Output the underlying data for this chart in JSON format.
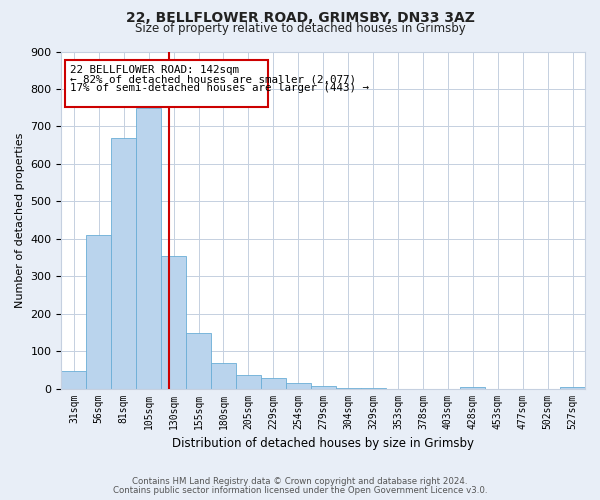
{
  "title1": "22, BELLFLOWER ROAD, GRIMSBY, DN33 3AZ",
  "title2": "Size of property relative to detached houses in Grimsby",
  "xlabel": "Distribution of detached houses by size in Grimsby",
  "ylabel": "Number of detached properties",
  "bar_labels": [
    "31sqm",
    "56sqm",
    "81sqm",
    "105sqm",
    "130sqm",
    "155sqm",
    "180sqm",
    "205sqm",
    "229sqm",
    "254sqm",
    "279sqm",
    "304sqm",
    "329sqm",
    "353sqm",
    "378sqm",
    "403sqm",
    "428sqm",
    "453sqm",
    "477sqm",
    "502sqm",
    "527sqm"
  ],
  "bar_values": [
    48,
    410,
    670,
    750,
    355,
    148,
    68,
    36,
    28,
    14,
    7,
    2,
    1,
    0,
    0,
    0,
    4,
    0,
    0,
    0,
    4
  ],
  "bar_color": "#bad4ed",
  "bar_edgecolor": "#6aaed6",
  "vline_x": 3.82,
  "property_line_label": "22 BELLFLOWER ROAD: 142sqm",
  "annotation_line1": "← 82% of detached houses are smaller (2,077)",
  "annotation_line2": "17% of semi-detached houses are larger (443) →",
  "vline_color": "#cc0000",
  "box_edgecolor": "#cc0000",
  "ylim": [
    0,
    900
  ],
  "yticks": [
    0,
    100,
    200,
    300,
    400,
    500,
    600,
    700,
    800,
    900
  ],
  "footnote1": "Contains HM Land Registry data © Crown copyright and database right 2024.",
  "footnote2": "Contains public sector information licensed under the Open Government Licence v3.0.",
  "bg_color": "#e8eef7",
  "plot_bg_color": "#ffffff",
  "grid_color": "#c5d0e0"
}
